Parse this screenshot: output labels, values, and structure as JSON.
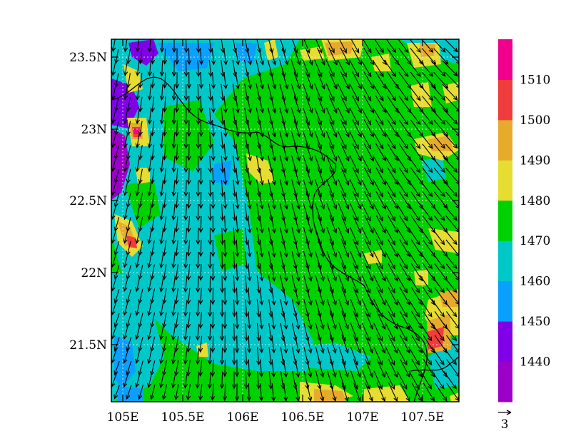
{
  "map": {
    "lat_ticks": [
      "23.5N",
      "23N",
      "22.5N",
      "22N",
      "21.5N"
    ],
    "lon_ticks": [
      "105E",
      "105.5E",
      "106E",
      "106.5E",
      "107E",
      "107.5E"
    ],
    "extent": {
      "lon": [
        104.9,
        107.8
      ],
      "lat": [
        21.1,
        23.64
      ]
    },
    "grid": "dotted",
    "dominant_wind": "from the north-east"
  },
  "colorbar": {
    "levels": [
      "1440",
      "1450",
      "1460",
      "1470",
      "1480",
      "1490",
      "1500",
      "1510"
    ],
    "colors": [
      "#9b00c8",
      "#8000e8",
      "#0aa0ff",
      "#00c8c8",
      "#00d200",
      "#e6dc32",
      "#e6aa2d",
      "#f03c3c",
      "#f0008c"
    ]
  },
  "vector_reference": {
    "label": "3"
  },
  "chart_data": {
    "type": "contour-fill with wind vectors",
    "title": "",
    "xlabel": "",
    "ylabel": "",
    "xlim": [
      104.9,
      107.8
    ],
    "ylim": [
      21.1,
      23.64
    ],
    "contour_levels": [
      1440,
      1450,
      1460,
      1470,
      1480,
      1490,
      1500,
      1510
    ],
    "x_ticks": [
      105,
      105.5,
      106,
      106.5,
      107,
      107.5
    ],
    "y_ticks": [
      21.5,
      22,
      22.5,
      23,
      23.5
    ]
  }
}
